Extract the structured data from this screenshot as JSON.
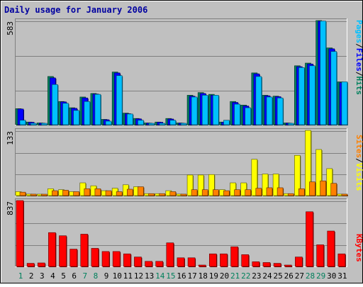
{
  "chart_data": [
    {
      "type": "bar",
      "panel": "hits-files-pages",
      "title": "Daily usage for January 2006",
      "ymax_label": "583",
      "ylim": [
        0,
        583
      ],
      "grid": true,
      "categories": [
        "1",
        "2",
        "3",
        "4",
        "5",
        "6",
        "7",
        "8",
        "9",
        "10",
        "11",
        "12",
        "13",
        "14",
        "15",
        "16",
        "17",
        "18",
        "19",
        "20",
        "21",
        "22",
        "23",
        "24",
        "25",
        "26",
        "27",
        "28",
        "29",
        "30",
        "31"
      ],
      "weekend_categories": [
        "1",
        "7",
        "8",
        "14",
        "15",
        "21",
        "22",
        "28",
        "29"
      ],
      "series": [
        {
          "name": "Hits",
          "color": "#00805c",
          "values": [
            90,
            15,
            10,
            270,
            130,
            95,
            155,
            175,
            30,
            295,
            65,
            35,
            10,
            15,
            35,
            10,
            165,
            180,
            170,
            15,
            130,
            110,
            290,
            165,
            160,
            10,
            330,
            345,
            583,
            430,
            240
          ]
        },
        {
          "name": "Files",
          "color": "#0000ff",
          "values": [
            88,
            14,
            9,
            262,
            128,
            92,
            150,
            172,
            28,
            290,
            62,
            33,
            9,
            14,
            32,
            9,
            160,
            175,
            165,
            14,
            125,
            105,
            285,
            162,
            157,
            9,
            325,
            340,
            580,
            425,
            235
          ]
        },
        {
          "name": "Pages",
          "color": "#00c0ff",
          "values": [
            25,
            8,
            8,
            225,
            120,
            80,
            130,
            170,
            20,
            275,
            60,
            25,
            8,
            8,
            25,
            8,
            155,
            165,
            165,
            25,
            115,
            95,
            270,
            155,
            150,
            8,
            320,
            330,
            580,
            410,
            240
          ]
        }
      ],
      "axis_legend": [
        "Pages",
        "Files",
        "Hits"
      ],
      "axis_legend_separator": "/"
    },
    {
      "type": "bar",
      "panel": "visits-sites",
      "ymax_label": "133",
      "ylim": [
        0,
        133
      ],
      "grid": true,
      "series": [
        {
          "name": "Visits",
          "color": "#ffff00",
          "values": [
            8,
            3,
            1,
            14,
            12,
            8,
            26,
            20,
            10,
            15,
            22,
            18,
            4,
            4,
            10,
            3,
            42,
            42,
            43,
            12,
            26,
            26,
            74,
            44,
            44,
            4,
            82,
            133,
            94,
            55,
            3
          ]
        },
        {
          "name": "Sites",
          "color": "#ff8000",
          "values": [
            7,
            3,
            1,
            10,
            11,
            8,
            14,
            14,
            10,
            8,
            13,
            18,
            4,
            4,
            8,
            3,
            12,
            12,
            12,
            10,
            12,
            12,
            15,
            16,
            16,
            4,
            14,
            28,
            30,
            25,
            3
          ]
        }
      ],
      "axis_legend": [
        "Sites",
        "Visits"
      ],
      "axis_legend_separator": "/"
    },
    {
      "type": "bar",
      "panel": "kbytes",
      "ymax_label": "837",
      "ylim": [
        0,
        837
      ],
      "grid": true,
      "series": [
        {
          "name": "KBytes",
          "color": "#ff0000",
          "values": [
            837,
            40,
            45,
            430,
            390,
            220,
            410,
            230,
            190,
            190,
            160,
            120,
            65,
            65,
            300,
            110,
            110,
            10,
            160,
            160,
            250,
            150,
            60,
            50,
            40,
            10,
            120,
            695,
            275,
            450,
            160
          ]
        }
      ],
      "axis_legend": [
        "KBytes"
      ]
    }
  ]
}
